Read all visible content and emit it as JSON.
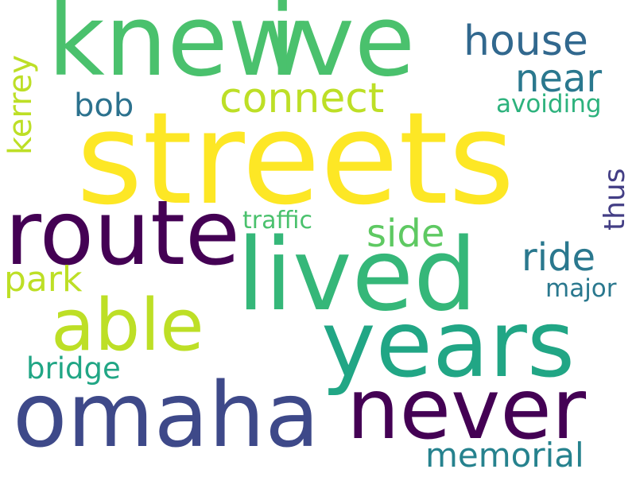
{
  "word_cloud": {
    "words": [
      {
        "text": "streets",
        "color": "#fde725"
      },
      {
        "text": "knew",
        "color": "#4ac16d"
      },
      {
        "text": "ive",
        "color": "#4ac16d"
      },
      {
        "text": "route",
        "color": "#440154"
      },
      {
        "text": "lived",
        "color": "#35b779"
      },
      {
        "text": "years",
        "color": "#21a685"
      },
      {
        "text": "omaha",
        "color": "#3e4989"
      },
      {
        "text": "never",
        "color": "#440154"
      },
      {
        "text": "able",
        "color": "#bddf26"
      },
      {
        "text": "house",
        "color": "#31688e"
      },
      {
        "text": "near",
        "color": "#2a788e"
      },
      {
        "text": "connect",
        "color": "#bddf26"
      },
      {
        "text": "bob",
        "color": "#2c728e"
      },
      {
        "text": "avoiding",
        "color": "#2db27d"
      },
      {
        "text": "side",
        "color": "#5ec962"
      },
      {
        "text": "ride",
        "color": "#2a788e"
      },
      {
        "text": "park",
        "color": "#bddf26"
      },
      {
        "text": "traffic",
        "color": "#4ac16d"
      },
      {
        "text": "major",
        "color": "#2a788e"
      },
      {
        "text": "bridge",
        "color": "#21a685"
      },
      {
        "text": "memorial",
        "color": "#26828e"
      },
      {
        "text": "kerrey",
        "color": "#bddf26"
      },
      {
        "text": "thus",
        "color": "#433e85"
      }
    ]
  }
}
